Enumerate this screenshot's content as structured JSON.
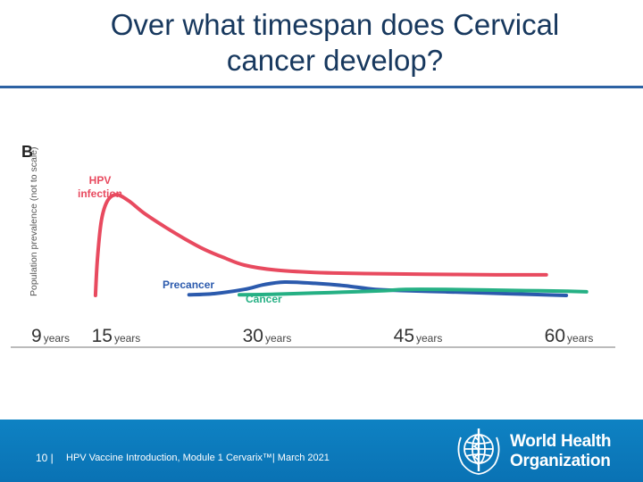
{
  "slide": {
    "title_line1": "Over what timespan does Cervical",
    "title_line2": "cancer develop?"
  },
  "chart_data": {
    "type": "line",
    "panel_label": "B",
    "ylabel": "Population prevalence (not to scale)",
    "x_ticks": [
      {
        "value": 9,
        "num": "9",
        "unit": "years"
      },
      {
        "value": 15,
        "num": "15",
        "unit": "years"
      },
      {
        "value": 30,
        "num": "30",
        "unit": "years"
      },
      {
        "value": 45,
        "num": "45",
        "unit": "years"
      },
      {
        "value": 60,
        "num": "60",
        "unit": "years"
      }
    ],
    "xlim": [
      9,
      65
    ],
    "ylim": [
      0,
      100
    ],
    "series": [
      {
        "name": "HPV infection",
        "label_line1": "HPV",
        "label_line2": "infection",
        "color": "#e84a5f",
        "points": [
          [
            15.2,
            0
          ],
          [
            15.4,
            30
          ],
          [
            15.8,
            62
          ],
          [
            16.4,
            78
          ],
          [
            17.3,
            83
          ],
          [
            18.5,
            78
          ],
          [
            20,
            68
          ],
          [
            22,
            57
          ],
          [
            24,
            47
          ],
          [
            26,
            38
          ],
          [
            28,
            31
          ],
          [
            30,
            25
          ],
          [
            33,
            21
          ],
          [
            37,
            19
          ],
          [
            42,
            18
          ],
          [
            48,
            17.5
          ],
          [
            55,
            17
          ],
          [
            60,
            17
          ]
        ]
      },
      {
        "name": "Precancer",
        "label_line1": "Precancer",
        "color": "#2b5aad",
        "points": [
          [
            24.5,
            0.5
          ],
          [
            27,
            1.5
          ],
          [
            30,
            5
          ],
          [
            32,
            9
          ],
          [
            34,
            11
          ],
          [
            37,
            10
          ],
          [
            40,
            8
          ],
          [
            43,
            5
          ],
          [
            46,
            4
          ],
          [
            50,
            3
          ],
          [
            54,
            2
          ],
          [
            58,
            1
          ],
          [
            62,
            0
          ]
        ]
      },
      {
        "name": "Cancer",
        "label_line1": "Cancer",
        "color": "#25b084",
        "points": [
          [
            29.5,
            0.5
          ],
          [
            33,
            1
          ],
          [
            37,
            2
          ],
          [
            41,
            3
          ],
          [
            44,
            4
          ],
          [
            46,
            5
          ],
          [
            50,
            5
          ],
          [
            54,
            4.5
          ],
          [
            58,
            4
          ],
          [
            62,
            3.5
          ],
          [
            64,
            3
          ]
        ]
      }
    ]
  },
  "footer": {
    "page_number": "10 |",
    "text": "HPV Vaccine Introduction, Module 1 Cervarix™| March 2021",
    "org_line1": "World Health",
    "org_line2": "Organization"
  },
  "colors": {
    "title": "#17385e",
    "rule": "#2d62a3",
    "footer_bg": "#0a78ba"
  }
}
